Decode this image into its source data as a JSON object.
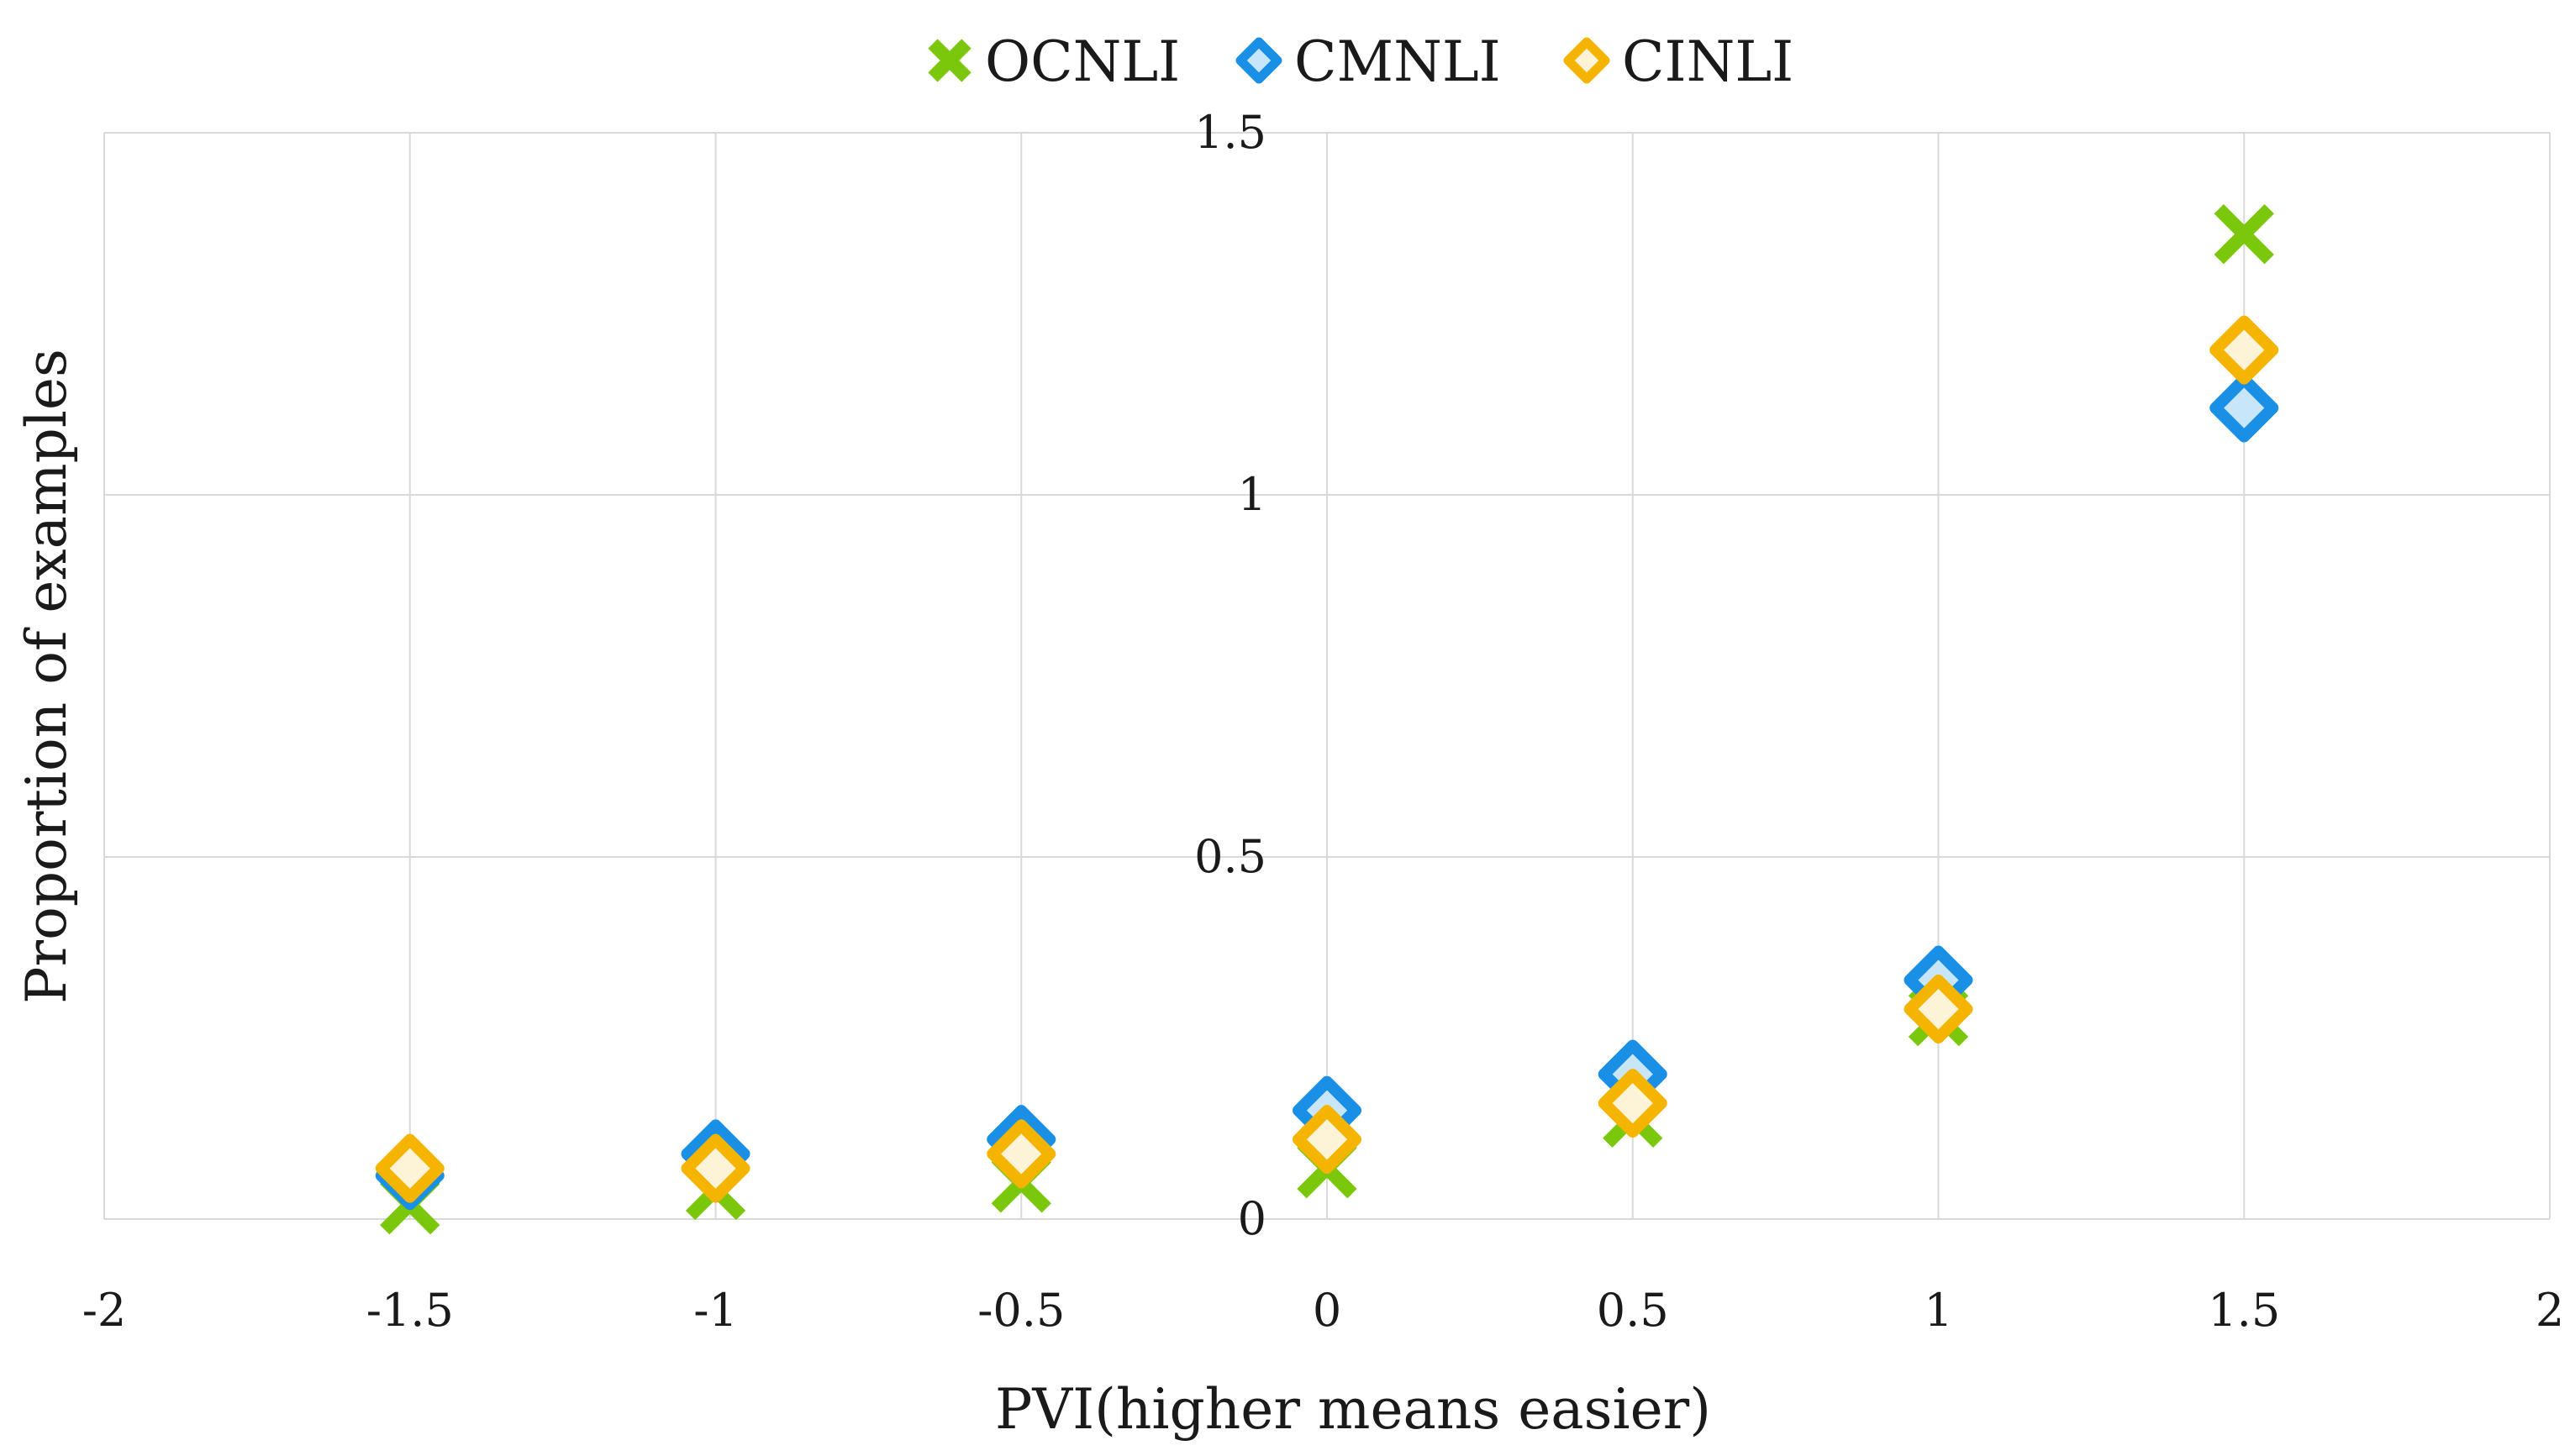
{
  "chart_data": {
    "type": "scatter",
    "title": "",
    "xlabel": "PVI(higher means easier)",
    "ylabel": "Proportion of examples",
    "xlim": [
      -2,
      2
    ],
    "ylim": [
      0,
      1.5
    ],
    "x_ticks": [
      -2,
      -1.5,
      -1,
      -0.5,
      0,
      0.5,
      1,
      1.5,
      2
    ],
    "y_ticks": [
      0,
      0.5,
      1,
      1.5
    ],
    "x_tick_labels": [
      "-2",
      "-1.5",
      "-1",
      "-0.5",
      "0",
      "0.5",
      "1",
      "1.5",
      "2"
    ],
    "y_tick_labels": [
      "0",
      "0.5",
      "1",
      "1.5"
    ],
    "grid": true,
    "legend_position": "top",
    "series": [
      {
        "name": "OCNLI",
        "marker": "x",
        "color": "#7ac70c",
        "points": [
          [
            -1.5,
            0.02
          ],
          [
            -1,
            0.04
          ],
          [
            -0.5,
            0.05
          ],
          [
            0,
            0.07
          ],
          [
            0.5,
            0.14
          ],
          [
            1,
            0.28
          ],
          [
            1.5,
            1.36
          ]
        ]
      },
      {
        "name": "CMNLI",
        "marker": "diamond",
        "color": "#1a8fe6",
        "fill": "#c8e6fa",
        "points": [
          [
            -1.5,
            0.06
          ],
          [
            -1,
            0.09
          ],
          [
            -0.5,
            0.11
          ],
          [
            0,
            0.15
          ],
          [
            0.5,
            0.2
          ],
          [
            1,
            0.33
          ],
          [
            1.5,
            1.12
          ]
        ]
      },
      {
        "name": "CINLI",
        "marker": "diamond",
        "color": "#f5b400",
        "fill": "#fdf3d6",
        "points": [
          [
            -1.5,
            0.07
          ],
          [
            -1,
            0.07
          ],
          [
            -0.5,
            0.09
          ],
          [
            0,
            0.11
          ],
          [
            0.5,
            0.16
          ],
          [
            1,
            0.29
          ],
          [
            1.5,
            1.2
          ]
        ]
      }
    ]
  }
}
